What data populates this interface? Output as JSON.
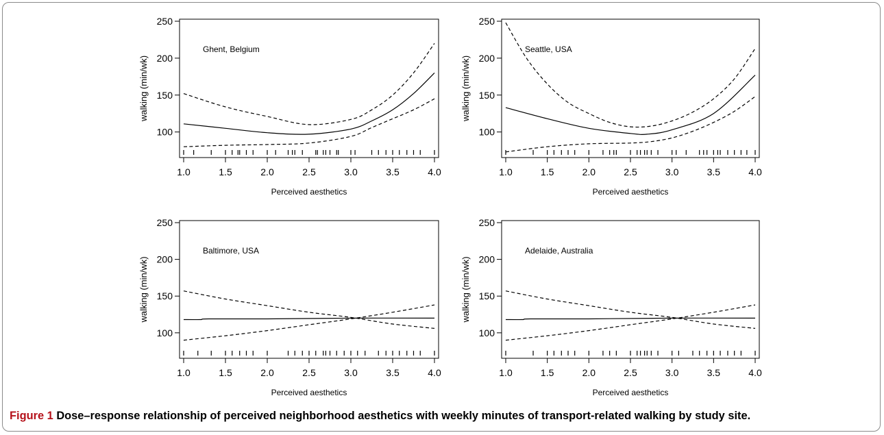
{
  "figure": {
    "caption_label": "Figure 1",
    "caption_text": "Dose–response relationship of perceived neighborhood aesthetics with weekly minutes of transport-related walking by study site.",
    "caption_label_color": "#b5121b"
  },
  "chart_data": [
    {
      "type": "line",
      "panel_label": "Ghent, Belgium",
      "xlabel": "Perceived aesthetics",
      "ylabel": "walking (min/wk)",
      "xlim": [
        1.0,
        4.0
      ],
      "ylim": [
        70,
        250
      ],
      "xticks": [
        "1.0",
        "1.5",
        "2.0",
        "2.5",
        "3.0",
        "3.5",
        "4.0"
      ],
      "yticks": [
        "100",
        "150",
        "200",
        "250"
      ],
      "grid": false,
      "series": [
        {
          "style": "solid",
          "x": [
            1.0,
            1.5,
            2.0,
            2.5,
            3.0,
            3.25,
            3.5,
            3.75,
            4.0
          ],
          "y": [
            111,
            105,
            99,
            97,
            104,
            115,
            130,
            152,
            180
          ]
        },
        {
          "style": "dashed",
          "x": [
            1.0,
            1.5,
            2.0,
            2.5,
            3.0,
            3.25,
            3.5,
            3.75,
            4.0
          ],
          "y": [
            152,
            134,
            121,
            110,
            117,
            130,
            150,
            180,
            220
          ]
        },
        {
          "style": "dashed",
          "x": [
            1.0,
            1.5,
            2.0,
            2.5,
            3.0,
            3.25,
            3.5,
            3.75,
            4.0
          ],
          "y": [
            80,
            82,
            83,
            85,
            94,
            106,
            118,
            130,
            145
          ]
        }
      ],
      "rug": [
        1.0,
        1.12,
        1.33,
        1.5,
        1.58,
        1.65,
        1.67,
        1.75,
        1.83,
        2.0,
        2.1,
        2.25,
        2.3,
        2.33,
        2.42,
        2.58,
        2.6,
        2.67,
        2.7,
        2.75,
        2.83,
        2.85,
        3.0,
        3.05,
        3.25,
        3.33,
        3.42,
        3.5,
        3.58,
        3.67,
        3.75,
        3.83,
        4.0
      ]
    },
    {
      "type": "line",
      "panel_label": "Seattle, USA",
      "xlabel": "Perceived aesthetics",
      "ylabel": "walking (min/wk)",
      "xlim": [
        1.0,
        4.0
      ],
      "ylim": [
        70,
        250
      ],
      "xticks": [
        "1.0",
        "1.5",
        "2.0",
        "2.5",
        "3.0",
        "3.5",
        "4.0"
      ],
      "yticks": [
        "100",
        "150",
        "200",
        "250"
      ],
      "grid": false,
      "series": [
        {
          "style": "solid",
          "x": [
            1.0,
            1.5,
            2.0,
            2.5,
            2.7,
            3.0,
            3.5,
            4.0
          ],
          "y": [
            133,
            118,
            105,
            98,
            97,
            103,
            125,
            177
          ]
        },
        {
          "style": "dashed",
          "x": [
            1.0,
            1.25,
            1.5,
            1.75,
            2.0,
            2.25,
            2.5,
            2.75,
            3.0,
            3.25,
            3.5,
            3.75,
            4.0
          ],
          "y": [
            248,
            200,
            165,
            140,
            125,
            113,
            107,
            108,
            115,
            127,
            145,
            172,
            213
          ]
        },
        {
          "style": "dashed",
          "x": [
            1.0,
            1.5,
            2.0,
            2.5,
            2.75,
            3.0,
            3.25,
            3.5,
            3.75,
            4.0
          ],
          "y": [
            73,
            80,
            84,
            85,
            87,
            92,
            101,
            113,
            128,
            148
          ]
        }
      ],
      "rug": [
        1.0,
        1.33,
        1.5,
        1.58,
        1.67,
        1.75,
        1.83,
        2.0,
        2.17,
        2.25,
        2.3,
        2.33,
        2.5,
        2.58,
        2.62,
        2.67,
        2.7,
        2.75,
        2.83,
        3.0,
        3.05,
        3.17,
        3.33,
        3.38,
        3.42,
        3.5,
        3.55,
        3.58,
        3.67,
        3.75,
        3.83,
        3.9,
        4.0
      ]
    },
    {
      "type": "line",
      "panel_label": "Baltimore, USA",
      "xlabel": "Perceived aesthetics",
      "ylabel": "walking (min/wk)",
      "xlim": [
        1.0,
        4.0
      ],
      "ylim": [
        70,
        250
      ],
      "xticks": [
        "1.0",
        "1.5",
        "2.0",
        "2.5",
        "3.0",
        "3.5",
        "4.0"
      ],
      "yticks": [
        "100",
        "150",
        "200",
        "250"
      ],
      "grid": false,
      "series": [
        {
          "style": "solid",
          "x": [
            1.0,
            1.2,
            1.3,
            2.0,
            3.0,
            4.0
          ],
          "y": [
            118,
            118,
            119,
            119,
            120,
            120
          ]
        },
        {
          "style": "dashed",
          "x": [
            1.0,
            1.5,
            2.0,
            2.5,
            3.0,
            3.5,
            4.0
          ],
          "y": [
            157,
            146,
            137,
            128,
            121,
            112,
            106
          ]
        },
        {
          "style": "dashed",
          "x": [
            1.0,
            1.5,
            2.0,
            2.5,
            3.0,
            3.5,
            4.0
          ],
          "y": [
            90,
            96,
            103,
            111,
            119,
            128,
            138
          ]
        }
      ],
      "rug": [
        1.0,
        1.17,
        1.33,
        1.5,
        1.58,
        1.67,
        1.75,
        1.83,
        2.0,
        2.25,
        2.33,
        2.42,
        2.5,
        2.58,
        2.67,
        2.7,
        2.75,
        2.83,
        2.92,
        3.0,
        3.08,
        3.17,
        3.33,
        3.42,
        3.5,
        3.58,
        3.67,
        3.75,
        3.83,
        4.0
      ]
    },
    {
      "type": "line",
      "panel_label": "Adelaide, Australia",
      "xlabel": "Perceived aesthetics",
      "ylabel": "walking (min/wk)",
      "xlim": [
        1.0,
        4.0
      ],
      "ylim": [
        70,
        250
      ],
      "xticks": [
        "1.0",
        "1.5",
        "2.0",
        "2.5",
        "3.0",
        "3.5",
        "4.0"
      ],
      "yticks": [
        "100",
        "150",
        "200",
        "250"
      ],
      "grid": false,
      "series": [
        {
          "style": "solid",
          "x": [
            1.0,
            1.2,
            1.3,
            2.0,
            3.0,
            4.0
          ],
          "y": [
            118,
            118,
            119,
            119,
            120,
            120
          ]
        },
        {
          "style": "dashed",
          "x": [
            1.0,
            1.5,
            2.0,
            2.5,
            3.0,
            3.5,
            4.0
          ],
          "y": [
            157,
            146,
            137,
            128,
            121,
            112,
            106
          ]
        },
        {
          "style": "dashed",
          "x": [
            1.0,
            1.5,
            2.0,
            2.5,
            3.0,
            3.5,
            4.0
          ],
          "y": [
            90,
            96,
            103,
            111,
            119,
            128,
            138
          ]
        }
      ],
      "rug": [
        1.0,
        1.33,
        1.5,
        1.58,
        1.67,
        1.75,
        1.83,
        2.0,
        2.17,
        2.25,
        2.33,
        2.5,
        2.58,
        2.62,
        2.67,
        2.7,
        2.75,
        2.83,
        3.0,
        3.08,
        3.25,
        3.33,
        3.42,
        3.5,
        3.58,
        3.67,
        3.75,
        3.83,
        4.0
      ]
    }
  ]
}
